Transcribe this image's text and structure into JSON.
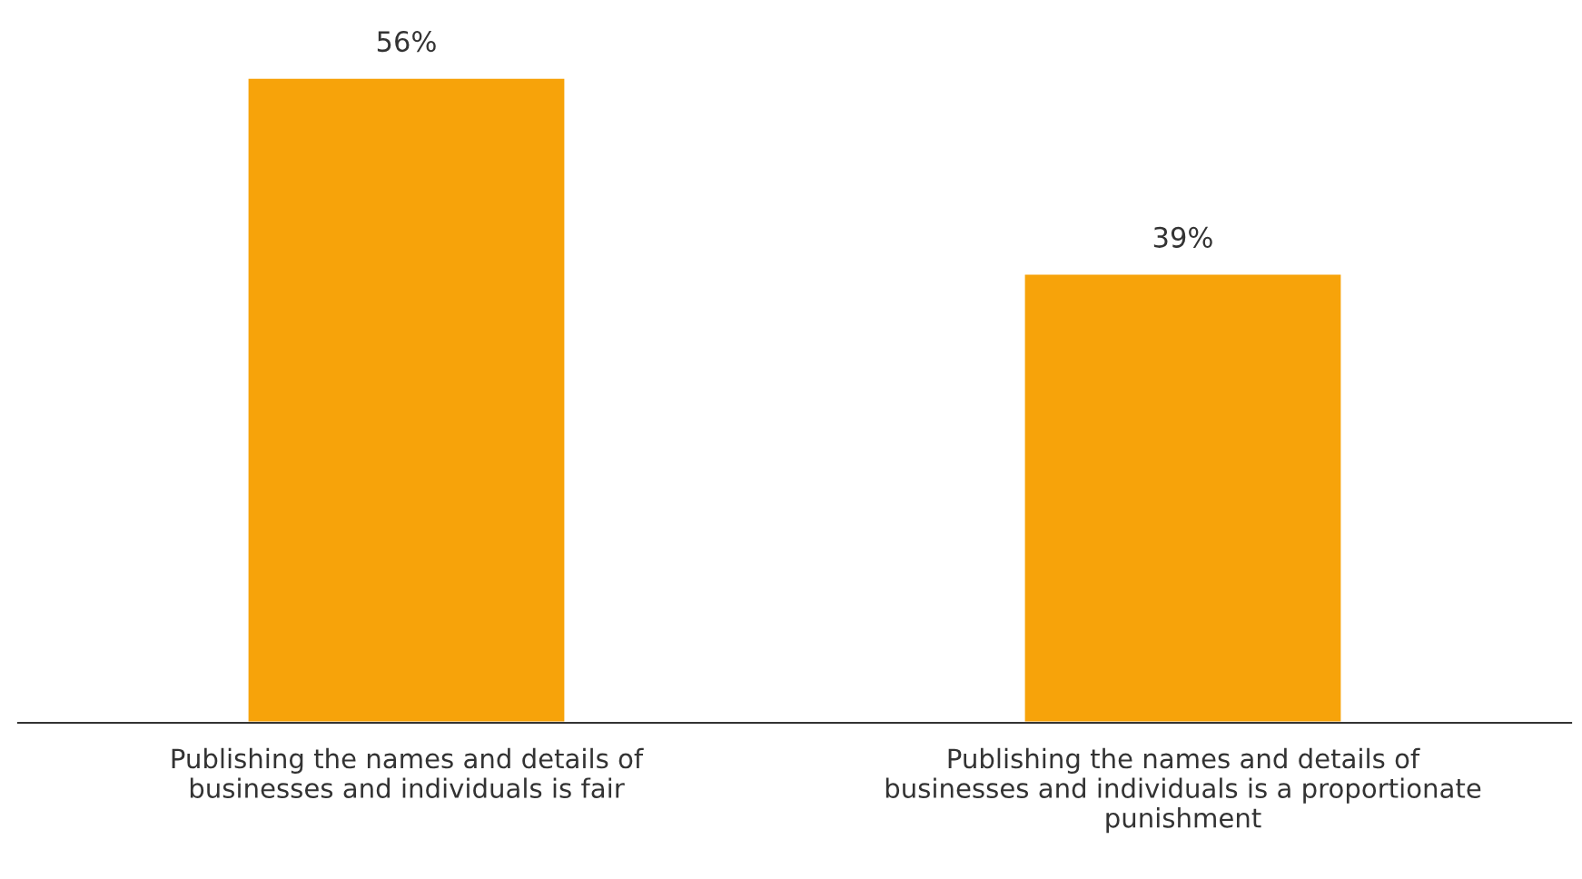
{
  "chart_data": {
    "type": "bar",
    "categories": [
      "Publishing the names and details of\nbusinesses and individuals is fair",
      "Publishing the names and details of\nbusinesses and individuals is a proportionate\npunishment"
    ],
    "values": [
      56,
      39
    ],
    "color": "#f7a30a",
    "value_labels": [
      "56%",
      "39%"
    ],
    "grid": false,
    "legend": false
  }
}
